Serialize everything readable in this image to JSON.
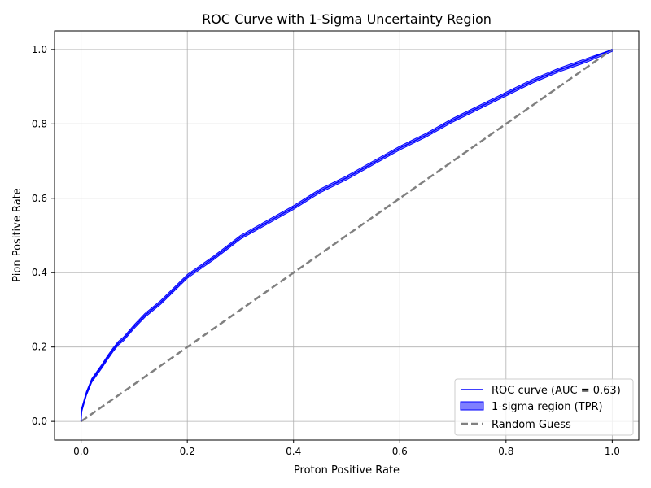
{
  "chart_data": {
    "type": "line",
    "title": "ROC Curve with 1-Sigma Uncertainty Region",
    "xlabel": "Proton Positive Rate",
    "ylabel": "Pion Positive Rate",
    "xlim": [
      -0.05,
      1.05
    ],
    "ylim": [
      -0.05,
      1.05
    ],
    "xticks": [
      "0.0",
      "0.2",
      "0.4",
      "0.6",
      "0.8",
      "1.0"
    ],
    "yticks": [
      "0.0",
      "0.2",
      "0.4",
      "0.6",
      "0.8",
      "1.0"
    ],
    "grid": true,
    "legend_position": "lower-right",
    "series": [
      {
        "name": "ROC curve (AUC = 0.63)",
        "color": "#0000ff",
        "style": "solid",
        "x": [
          0.0,
          0.001,
          0.005,
          0.01,
          0.02,
          0.03,
          0.04,
          0.05,
          0.06,
          0.07,
          0.08,
          0.1,
          0.12,
          0.15,
          0.2,
          0.25,
          0.3,
          0.35,
          0.4,
          0.45,
          0.5,
          0.55,
          0.6,
          0.65,
          0.7,
          0.75,
          0.8,
          0.85,
          0.9,
          0.95,
          1.0
        ],
        "y": [
          0.0,
          0.03,
          0.05,
          0.075,
          0.11,
          0.13,
          0.15,
          0.172,
          0.192,
          0.21,
          0.222,
          0.255,
          0.285,
          0.32,
          0.39,
          0.44,
          0.495,
          0.535,
          0.575,
          0.62,
          0.655,
          0.695,
          0.735,
          0.77,
          0.81,
          0.845,
          0.88,
          0.915,
          0.945,
          0.97,
          1.0
        ]
      },
      {
        "name": "1-sigma region (TPR)",
        "color": "#0000ff",
        "style": "band",
        "sigma": 0.005
      },
      {
        "name": "Random Guess",
        "color": "#808080",
        "style": "dashed",
        "x": [
          0.0,
          1.0
        ],
        "y": [
          0.0,
          1.0
        ]
      }
    ]
  }
}
